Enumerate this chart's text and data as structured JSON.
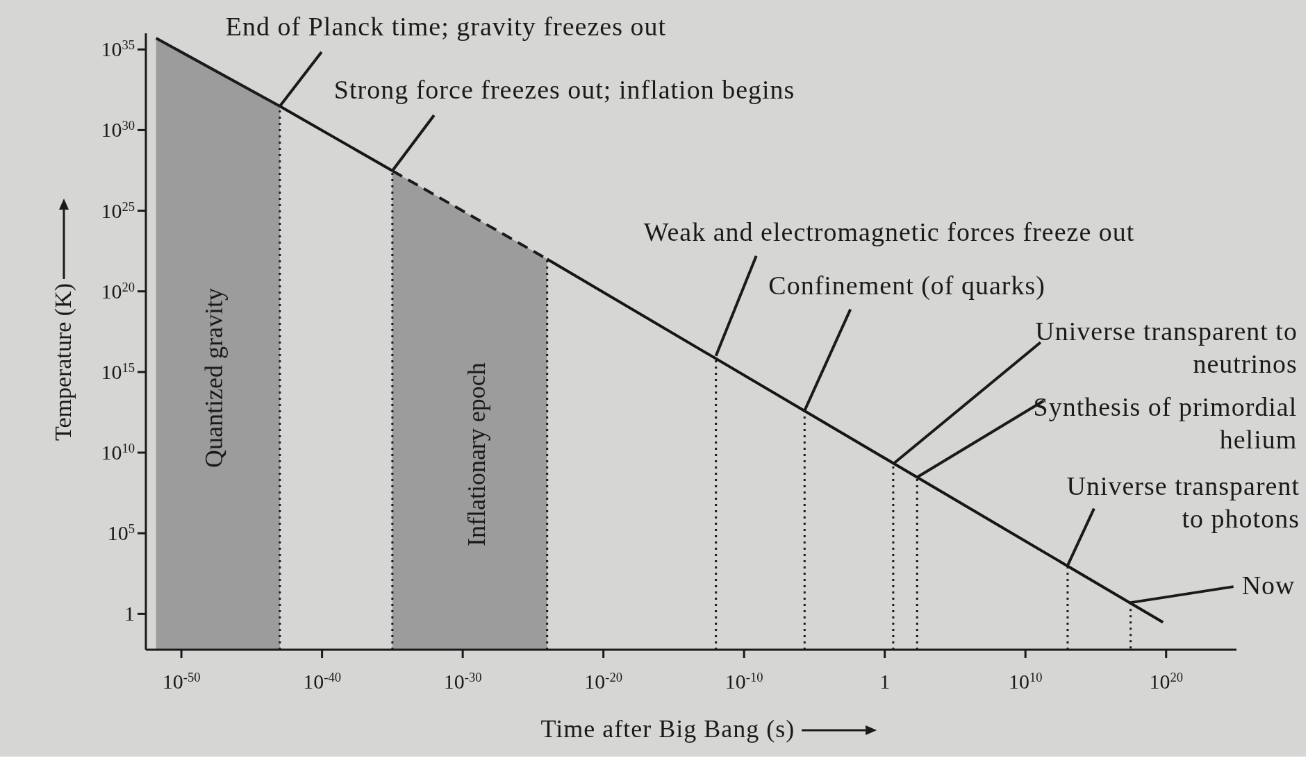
{
  "chart_data": {
    "type": "line",
    "xlabel": "Time after Big Bang (s)",
    "ylabel": "Temperature (K)",
    "log": "xy",
    "ref_lines": [
      {
        "axis": "x",
        "value": 1e-43,
        "line_style": "dotted"
      },
      {
        "axis": "x",
        "value": 1e-35,
        "line_style": "dotted"
      },
      {
        "axis": "x",
        "value": 1e-24,
        "line_style": "dotted"
      },
      {
        "axis": "x",
        "value": 1e-12,
        "line_style": "dotted"
      },
      {
        "axis": "x",
        "value": 2e-06,
        "line_style": "dotted"
      },
      {
        "axis": "x",
        "value": 4,
        "line_style": "dotted"
      },
      {
        "axis": "x",
        "value": 200,
        "line_style": "dotted"
      },
      {
        "axis": "x",
        "value": 10000000000000.0,
        "line_style": "dotted"
      }
    ],
    "xlim": [
      3e-53,
      1e+25
    ],
    "ylim": [
      0.006,
      1e+36
    ],
    "xticks": [
      {
        "value": 1e-50,
        "label": "10$^{-50}$"
      },
      {
        "value": 1e-40,
        "label": "10$^{-40}$"
      },
      {
        "value": 1e-30,
        "label": "10$^{-30}$"
      },
      {
        "value": 1e-20,
        "label": "10$^{-20}$"
      },
      {
        "value": 1e-10,
        "label": "10$^{-10}$"
      },
      1,
      {
        "value": 10000000000.0,
        "label": "10$^{10}$"
      },
      {
        "value": 1e+20,
        "label": "10$^{20}$"
      }
    ],
    "yticks": [
      1,
      {
        "value": 100000.0,
        "label": "10$^{5}$"
      },
      {
        "value": 10000000000.0,
        "label": "10$^{10}$"
      },
      {
        "value": 1000000000000000.0,
        "label": "10$^{15}$"
      },
      {
        "value": 1e+20,
        "label": "10$^{20}$"
      },
      {
        "value": 1e+25,
        "label": "10$^{25}$"
      },
      {
        "value": 1e+30,
        "label": "10$^{30}$"
      },
      {
        "value": 1e+35,
        "label": "10$^{35}$"
      }
    ],
    "series": [
      {
        "type": "area",
        "name": "Quantized gravity",
        "color": "#9c9c9c",
        "line_style": "solid",
        "x": [
          1.6e-52,
          1e-43
        ],
        "values": [
          5e+35,
          3e+31
        ]
      },
      {
        "type": "area",
        "name": "Inflationary epoch",
        "color": "#9c9c9c",
        "line_style": "dashed",
        "x": [
          1e-35,
          1e-24
        ],
        "values": [
          3e+27,
          1e+22
        ]
      },
      {
        "color": "#151515",
        "line_style": "solid",
        "x": [
          1e-43,
          1e-35
        ],
        "values": [
          3e+31,
          3e+27
        ]
      },
      {
        "color": "#151515",
        "line_style": "solid",
        "x": [
          1e-24,
          6e+19
        ],
        "values": [
          1e+22,
          0.3
        ]
      }
    ],
    "annotations": [
      {
        "text": "End of Planck time; gravity freezes out",
        "x": 1e-43,
        "y": 3e+31
      },
      {
        "text": "Strong force freezes out; inflation begins",
        "x": 1e-35,
        "y": 3e+27
      },
      {
        "text": "Weak and electromagnetic forces freeze out",
        "x": 1e-12,
        "y": 1e+16
      },
      {
        "text": "Confinement (of quarks)",
        "x": 2e-06,
        "y": 4000000000000.0
      },
      {
        "text": "Universe transparent to neutrinos",
        "x": 4,
        "y": 2000000000.0
      },
      {
        "text": "Synthesis of primordial helium",
        "x": 200,
        "y": 300000000.0
      },
      {
        "text": "Universe transparent to photons",
        "x": 10000000000000.0,
        "y": 1000
      },
      {
        "text": "Now",
        "x": 3e+17,
        "y": 5
      }
    ]
  }
}
